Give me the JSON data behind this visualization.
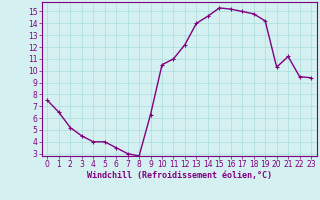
{
  "x": [
    0,
    1,
    2,
    3,
    4,
    5,
    6,
    7,
    8,
    9,
    10,
    11,
    12,
    13,
    14,
    15,
    16,
    17,
    18,
    19,
    20,
    21,
    22,
    23
  ],
  "y": [
    7.5,
    6.5,
    5.2,
    4.5,
    4.0,
    4.0,
    3.5,
    3.0,
    2.8,
    6.3,
    10.5,
    11.0,
    12.2,
    14.0,
    14.6,
    15.3,
    15.2,
    15.0,
    14.8,
    14.2,
    10.3,
    11.2,
    9.5,
    9.4
  ],
  "line_color": "#800080",
  "marker": "+",
  "marker_size": 3,
  "bg_color": "#d4f0f0",
  "grid_color": "#aadddd",
  "xlabel": "Windchill (Refroidissement éolien,°C)",
  "xlabel_color": "#800080",
  "tick_color": "#800080",
  "ylim": [
    2.8,
    15.8
  ],
  "xlim": [
    -0.5,
    23.5
  ],
  "yticks": [
    3,
    4,
    5,
    6,
    7,
    8,
    9,
    10,
    11,
    12,
    13,
    14,
    15
  ],
  "xticks": [
    0,
    1,
    2,
    3,
    4,
    5,
    6,
    7,
    8,
    9,
    10,
    11,
    12,
    13,
    14,
    15,
    16,
    17,
    18,
    19,
    20,
    21,
    22,
    23
  ],
  "spine_color": "#800080",
  "line_width": 1.0
}
